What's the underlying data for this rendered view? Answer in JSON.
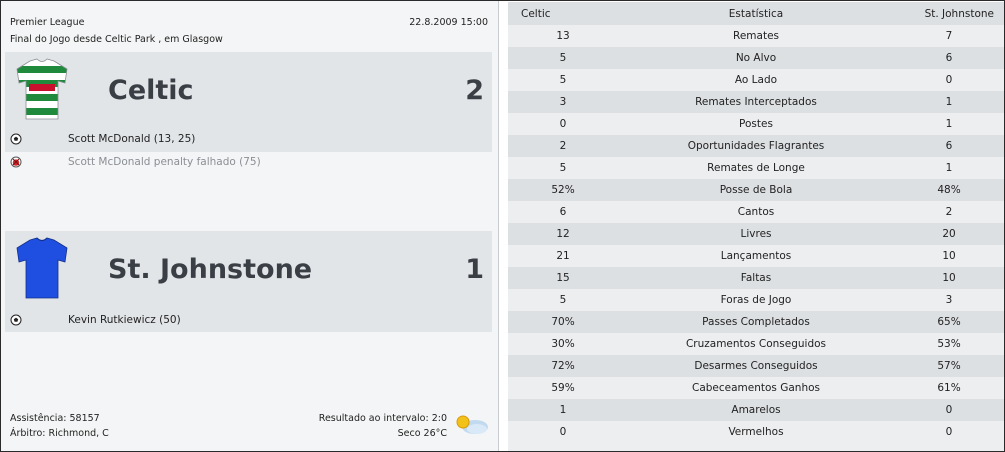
{
  "match": {
    "competition": "Premier League",
    "datetime": "22.8.2009 15:00",
    "venue": "Final do Jogo desde Celtic Park , em Glasgow"
  },
  "home": {
    "name": "Celtic",
    "score": "2",
    "kit_icon": "hooped-shirt-icon",
    "kit_colors": {
      "primary": "#1f8a3c",
      "secondary": "#ffffff"
    },
    "events": [
      {
        "icon": "ball-icon",
        "text": "Scott McDonald (13, 25)",
        "dim": false
      },
      {
        "icon": "missed-penalty-icon",
        "text": "Scott McDonald penalty falhado (75)",
        "dim": true
      }
    ]
  },
  "away": {
    "name": "St. Johnstone",
    "score": "1",
    "kit_icon": "plain-shirt-icon",
    "kit_colors": {
      "primary": "#1f4fe0"
    },
    "events": [
      {
        "icon": "ball-icon",
        "text": "Kevin Rutkiewicz (50)",
        "dim": false
      }
    ]
  },
  "footer": {
    "attendance": "Assistência: 58157",
    "referee": "Árbitro: Richmond, C",
    "halftime": "Resultado ao intervalo: 2:0",
    "weather": "Seco 26°C",
    "weather_icon": "sun-cloud-icon"
  },
  "stats": {
    "header": {
      "home": "Celtic",
      "stat": "Estatística",
      "away": "St. Johnstone"
    },
    "rows": [
      {
        "home": "13",
        "name": "Remates",
        "away": "7"
      },
      {
        "home": "5",
        "name": "No Alvo",
        "away": "6"
      },
      {
        "home": "5",
        "name": "Ao Lado",
        "away": "0"
      },
      {
        "home": "3",
        "name": "Remates Interceptados",
        "away": "1"
      },
      {
        "home": "0",
        "name": "Postes",
        "away": "1"
      },
      {
        "home": "2",
        "name": "Oportunidades Flagrantes",
        "away": "6"
      },
      {
        "home": "5",
        "name": "Remates de Longe",
        "away": "1"
      },
      {
        "home": "52%",
        "name": "Posse de Bola",
        "away": "48%"
      },
      {
        "home": "6",
        "name": "Cantos",
        "away": "2"
      },
      {
        "home": "12",
        "name": "Livres",
        "away": "20"
      },
      {
        "home": "21",
        "name": "Lançamentos",
        "away": "10"
      },
      {
        "home": "15",
        "name": "Faltas",
        "away": "10"
      },
      {
        "home": "5",
        "name": "Foras de Jogo",
        "away": "3"
      },
      {
        "home": "70%",
        "name": "Passes Completados",
        "away": "65%"
      },
      {
        "home": "30%",
        "name": "Cruzamentos Conseguidos",
        "away": "53%"
      },
      {
        "home": "72%",
        "name": "Desarmes Conseguidos",
        "away": "57%"
      },
      {
        "home": "59%",
        "name": "Cabeceamentos Ganhos",
        "away": "61%"
      },
      {
        "home": "1",
        "name": "Amarelos",
        "away": "0"
      },
      {
        "home": "0",
        "name": "Vermelhos",
        "away": "0"
      }
    ]
  }
}
